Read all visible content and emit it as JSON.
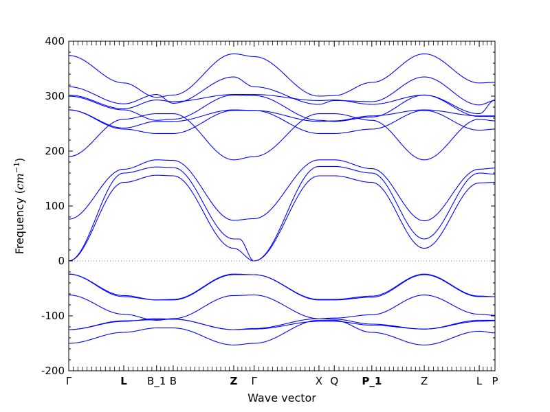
{
  "chart_data": {
    "type": "line",
    "xlabel": "Wave vector",
    "ylabel": "Frequency (cm⁻¹)",
    "ylabel_prefix": "Frequency (",
    "ylabel_unit_base": "cm",
    "ylabel_unit_exp": "−1",
    "ylabel_suffix": ")",
    "ylim": [
      -200,
      400
    ],
    "y_ticks": [
      -200,
      -100,
      0,
      100,
      200,
      300,
      400
    ],
    "line_color": "#0000ff",
    "zero_line": {
      "value": 0,
      "style": "dotted",
      "color": "#808080"
    },
    "grid": false,
    "legend": "none",
    "x_range": [
      0,
      1
    ],
    "k_points": [
      {
        "label": "Γ",
        "x": 0.0,
        "bold": false,
        "serif": true
      },
      {
        "label": "L",
        "x": 0.129,
        "bold": true,
        "serif": false
      },
      {
        "label": "B_1",
        "x": 0.206,
        "bold": false,
        "serif": false
      },
      {
        "label": "B",
        "x": 0.245,
        "bold": false,
        "serif": false
      },
      {
        "label": "Z",
        "x": 0.387,
        "bold": true,
        "serif": false
      },
      {
        "label": "Γ",
        "x": 0.435,
        "bold": false,
        "serif": true
      },
      {
        "label": "X",
        "x": 0.587,
        "bold": false,
        "serif": false
      },
      {
        "label": "Q",
        "x": 0.623,
        "bold": false,
        "serif": false
      },
      {
        "label": "P_1",
        "x": 0.711,
        "bold": true,
        "serif": false
      },
      {
        "label": "Z",
        "x": 0.834,
        "bold": false,
        "serif": false
      },
      {
        "label": "L",
        "x": 0.963,
        "bold": false,
        "serif": false
      },
      {
        "label": "P",
        "x": 1.0,
        "bold": false,
        "serif": false
      }
    ],
    "series": [
      {
        "points": [
          [
            0,
            -150
          ],
          [
            0.129,
            -130
          ],
          [
            0.206,
            -122
          ],
          [
            0.245,
            -122
          ],
          [
            0.387,
            -153
          ],
          [
            0.435,
            -150
          ],
          [
            0.587,
            -108
          ],
          [
            0.623,
            -108
          ],
          [
            0.711,
            -130
          ],
          [
            0.834,
            -153
          ],
          [
            0.963,
            -128
          ],
          [
            1,
            -131
          ]
        ]
      },
      {
        "points": [
          [
            0,
            -125
          ],
          [
            0.129,
            -110
          ],
          [
            0.206,
            -105
          ],
          [
            0.245,
            -106
          ],
          [
            0.387,
            -125
          ],
          [
            0.435,
            -124
          ],
          [
            0.587,
            -110
          ],
          [
            0.623,
            -110
          ],
          [
            0.711,
            -117
          ],
          [
            0.834,
            -124
          ],
          [
            0.963,
            -110
          ],
          [
            1,
            -109
          ]
        ]
      },
      {
        "points": [
          [
            0,
            -125
          ],
          [
            0.129,
            -109
          ],
          [
            0.206,
            -107
          ],
          [
            0.245,
            -106
          ],
          [
            0.387,
            -125
          ],
          [
            0.435,
            -123
          ],
          [
            0.587,
            -105
          ],
          [
            0.623,
            -106
          ],
          [
            0.711,
            -115
          ],
          [
            0.834,
            -124
          ],
          [
            0.963,
            -108
          ],
          [
            1,
            -108
          ]
        ]
      },
      {
        "points": [
          [
            0,
            -62
          ],
          [
            0.129,
            -97
          ],
          [
            0.206,
            -108
          ],
          [
            0.245,
            -105
          ],
          [
            0.387,
            -63
          ],
          [
            0.435,
            -62
          ],
          [
            0.587,
            -105
          ],
          [
            0.623,
            -104
          ],
          [
            0.711,
            -98
          ],
          [
            0.834,
            -62
          ],
          [
            0.963,
            -97
          ],
          [
            1,
            -99
          ]
        ]
      },
      {
        "points": [
          [
            0,
            -24
          ],
          [
            0.129,
            -63
          ],
          [
            0.206,
            -71
          ],
          [
            0.245,
            -70
          ],
          [
            0.387,
            -24
          ],
          [
            0.435,
            -25
          ],
          [
            0.587,
            -70
          ],
          [
            0.623,
            -70
          ],
          [
            0.711,
            -64
          ],
          [
            0.834,
            -24
          ],
          [
            0.963,
            -64
          ],
          [
            1,
            -65
          ]
        ]
      },
      {
        "points": [
          [
            0,
            -24
          ],
          [
            0.129,
            -65
          ],
          [
            0.206,
            -71
          ],
          [
            0.245,
            -71
          ],
          [
            0.387,
            -25
          ],
          [
            0.435,
            -25
          ],
          [
            0.587,
            -71
          ],
          [
            0.623,
            -71
          ],
          [
            0.711,
            -66
          ],
          [
            0.834,
            -25
          ],
          [
            0.963,
            -65
          ],
          [
            1,
            -65
          ]
        ]
      },
      {
        "points": [
          [
            0,
            0
          ],
          [
            0.129,
            143
          ],
          [
            0.206,
            156
          ],
          [
            0.245,
            155
          ],
          [
            0.387,
            23
          ],
          [
            0.435,
            0
          ],
          [
            0.587,
            155
          ],
          [
            0.623,
            155
          ],
          [
            0.711,
            143
          ],
          [
            0.834,
            23
          ],
          [
            0.963,
            142
          ],
          [
            1,
            143
          ]
        ]
      },
      {
        "points": [
          [
            0,
            0
          ],
          [
            0.129,
            160
          ],
          [
            0.206,
            171
          ],
          [
            0.245,
            170
          ],
          [
            0.387,
            40
          ],
          [
            0.4,
            40
          ],
          [
            0.435,
            0
          ],
          [
            0.587,
            172
          ],
          [
            0.623,
            172
          ],
          [
            0.711,
            160
          ],
          [
            0.834,
            40
          ],
          [
            0.963,
            160
          ],
          [
            1,
            158
          ]
        ]
      },
      {
        "points": [
          [
            0,
            76
          ],
          [
            0.129,
            167
          ],
          [
            0.206,
            184
          ],
          [
            0.245,
            183
          ],
          [
            0.387,
            74
          ],
          [
            0.435,
            77
          ],
          [
            0.587,
            184
          ],
          [
            0.623,
            184
          ],
          [
            0.711,
            168
          ],
          [
            0.834,
            73
          ],
          [
            0.963,
            167
          ],
          [
            1,
            169
          ]
        ]
      },
      {
        "points": [
          [
            0,
            190
          ],
          [
            0.129,
            258
          ],
          [
            0.206,
            268
          ],
          [
            0.245,
            268
          ],
          [
            0.387,
            184
          ],
          [
            0.435,
            190
          ],
          [
            0.587,
            268
          ],
          [
            0.623,
            268
          ],
          [
            0.711,
            256
          ],
          [
            0.834,
            184
          ],
          [
            0.963,
            258
          ],
          [
            1,
            255
          ]
        ]
      },
      {
        "points": [
          [
            0,
            275
          ],
          [
            0.129,
            240
          ],
          [
            0.206,
            232
          ],
          [
            0.245,
            232
          ],
          [
            0.387,
            274
          ],
          [
            0.435,
            274
          ],
          [
            0.587,
            232
          ],
          [
            0.623,
            232
          ],
          [
            0.711,
            240
          ],
          [
            0.834,
            274
          ],
          [
            0.963,
            238
          ],
          [
            1,
            240
          ]
        ]
      },
      {
        "points": [
          [
            0,
            275
          ],
          [
            0.129,
            242
          ],
          [
            0.206,
            254
          ],
          [
            0.245,
            254
          ],
          [
            0.387,
            275
          ],
          [
            0.435,
            274
          ],
          [
            0.587,
            254
          ],
          [
            0.623,
            255
          ],
          [
            0.711,
            264
          ],
          [
            0.834,
            275
          ],
          [
            0.963,
            264
          ],
          [
            1,
            264
          ]
        ]
      },
      {
        "points": [
          [
            0,
            300
          ],
          [
            0.129,
            275
          ],
          [
            0.206,
            256
          ],
          [
            0.245,
            258
          ],
          [
            0.387,
            302
          ],
          [
            0.435,
            301
          ],
          [
            0.587,
            256
          ],
          [
            0.623,
            254
          ],
          [
            0.711,
            262
          ],
          [
            0.834,
            302
          ],
          [
            0.963,
            263
          ],
          [
            1,
            263
          ]
        ]
      },
      {
        "points": [
          [
            0,
            302
          ],
          [
            0.129,
            277
          ],
          [
            0.206,
            293
          ],
          [
            0.245,
            290
          ],
          [
            0.387,
            303
          ],
          [
            0.435,
            303
          ],
          [
            0.587,
            292
          ],
          [
            0.623,
            293
          ],
          [
            0.711,
            285
          ],
          [
            0.834,
            302
          ],
          [
            0.963,
            268
          ],
          [
            1,
            293
          ]
        ]
      },
      {
        "points": [
          [
            0,
            317
          ],
          [
            0.129,
            286
          ],
          [
            0.206,
            303
          ],
          [
            0.245,
            287
          ],
          [
            0.387,
            335
          ],
          [
            0.435,
            317
          ],
          [
            0.587,
            285
          ],
          [
            0.623,
            292
          ],
          [
            0.711,
            290
          ],
          [
            0.834,
            335
          ],
          [
            0.963,
            284
          ],
          [
            1,
            292
          ]
        ]
      },
      {
        "points": [
          [
            0,
            374
          ],
          [
            0.129,
            324
          ],
          [
            0.206,
            298
          ],
          [
            0.245,
            302
          ],
          [
            0.387,
            377
          ],
          [
            0.435,
            372
          ],
          [
            0.587,
            300
          ],
          [
            0.623,
            301
          ],
          [
            0.711,
            325
          ],
          [
            0.834,
            377
          ],
          [
            0.963,
            324
          ],
          [
            1,
            325
          ]
        ]
      }
    ]
  }
}
